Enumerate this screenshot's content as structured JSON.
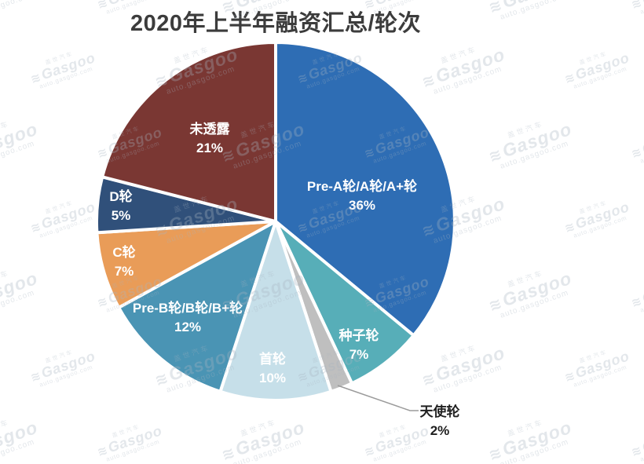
{
  "title": "2020年上半年融资汇总/轮次",
  "watermark": {
    "brand_cn": "盖世汽车",
    "brand_en": "Gasgoo",
    "url": "auto.gasgoo.com",
    "logo_glyph": "≋"
  },
  "chart_data": {
    "type": "pie",
    "title": "2020年上半年融资汇总/轮次",
    "unit": "%",
    "start_angle_deg": 0,
    "direction": "clockwise",
    "legend": "none",
    "label_format": "name + percent",
    "slices": [
      {
        "label": "Pre-A轮/A轮/A+轮",
        "value": 36,
        "display": "36%",
        "color": "#2E6DB4",
        "label_inside": true
      },
      {
        "label": "种子轮",
        "value": 7,
        "display": "7%",
        "color": "#57AEB8",
        "label_inside": true
      },
      {
        "label": "天使轮",
        "value": 2,
        "display": "2%",
        "color": "#BFBFBF",
        "label_inside": false
      },
      {
        "label": "首轮",
        "value": 10,
        "display": "10%",
        "color": "#C6DFE9",
        "label_inside": true
      },
      {
        "label": "Pre-B轮/B轮/B+轮",
        "value": 12,
        "display": "12%",
        "color": "#4A94B4",
        "label_inside": true
      },
      {
        "label": "C轮",
        "value": 7,
        "display": "7%",
        "color": "#E99C58",
        "label_inside": true
      },
      {
        "label": "D轮",
        "value": 5,
        "display": "5%",
        "color": "#30507A",
        "label_inside": true
      },
      {
        "label": "未透露",
        "value": 21,
        "display": "21%",
        "color": "#7A3733",
        "label_inside": true
      }
    ]
  }
}
